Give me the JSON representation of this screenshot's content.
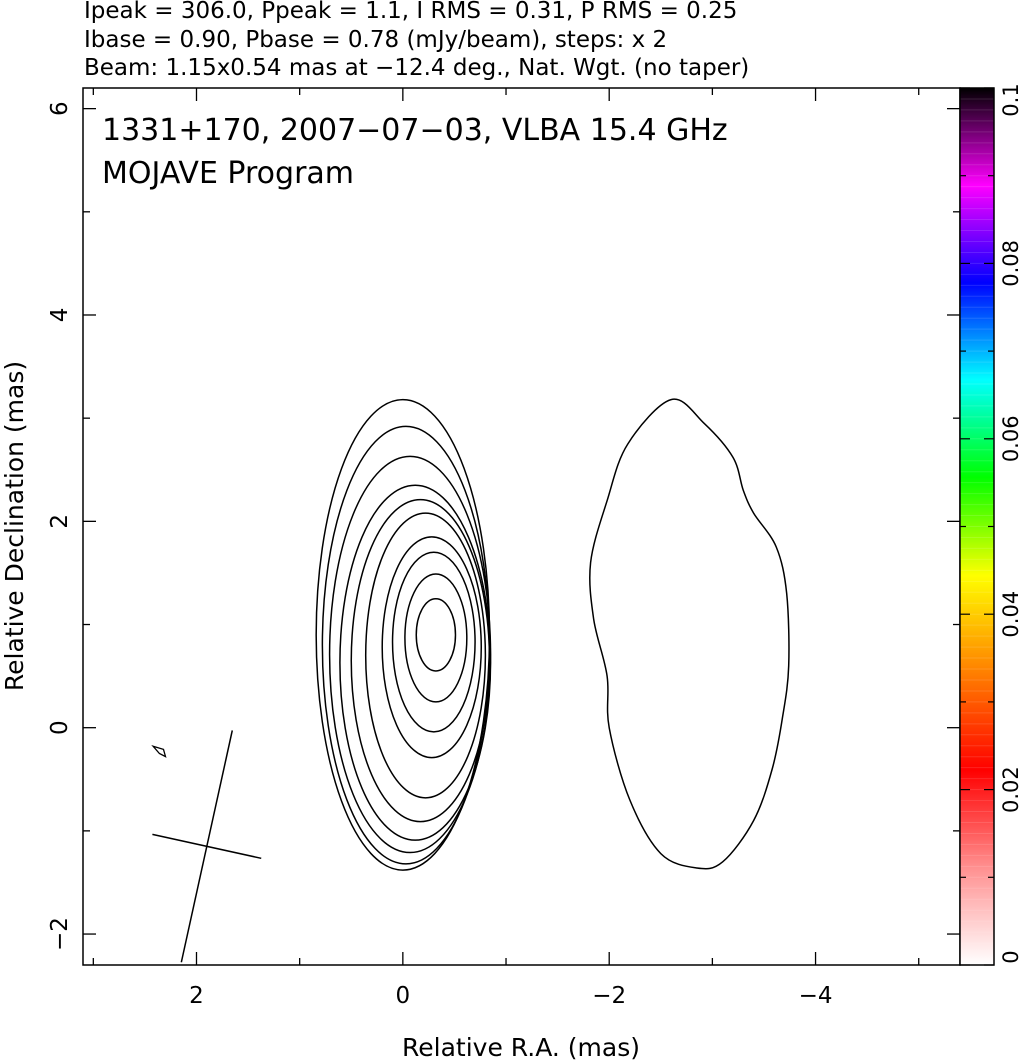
{
  "chart_data": {
    "type": "contour",
    "header_lines": [
      "Ipeak = 306.0, Ppeak = 1.1, I RMS = 0.31, P RMS = 0.25",
      "Ibase = 0.90, Pbase = 0.78 (mJy/beam), steps: x 2",
      "Beam: 1.15x0.54 mas at −12.4 deg., Nat. Wgt. (no taper)"
    ],
    "inner_title_lines": [
      "1331+170, 2007−07−03, VLBA 15.4 GHz",
      "MOJAVE Program"
    ],
    "xlabel": "Relative R.A. (mas)",
    "ylabel": "Relative Declination (mas)",
    "x_range": [
      3.1,
      -5.4
    ],
    "y_range": [
      -2.3,
      6.2
    ],
    "x_ticks": [
      {
        "value": 2,
        "label": "2"
      },
      {
        "value": 0,
        "label": "0"
      },
      {
        "value": -2,
        "label": "−2"
      },
      {
        "value": -4,
        "label": "−4"
      }
    ],
    "y_ticks": [
      {
        "value": -2,
        "label": "−2"
      },
      {
        "value": 0,
        "label": "0"
      },
      {
        "value": 2,
        "label": "2"
      },
      {
        "value": 4,
        "label": "4"
      },
      {
        "value": 6,
        "label": "6"
      }
    ],
    "colorbar": {
      "range": [
        0,
        0.1
      ],
      "tick_labels": [
        {
          "value": 0,
          "label": "0"
        },
        {
          "value": 0.02,
          "label": "0.02"
        },
        {
          "value": 0.04,
          "label": "0.04"
        },
        {
          "value": 0.06,
          "label": "0.06"
        },
        {
          "value": 0.08,
          "label": "0.08"
        },
        {
          "value": 0.1,
          "label": "0.1"
        }
      ],
      "colors_bottom_to_top": [
        "#ffffff",
        "#ff9090",
        "#ff0000",
        "#ff7f00",
        "#ffff00",
        "#00ff00",
        "#00ffff",
        "#0000ff",
        "#ff00ff",
        "#000000"
      ]
    },
    "beam": {
      "major_mas": 1.15,
      "minor_mas": 0.54,
      "pa_deg": -12.4,
      "center": [
        1.9,
        -1.15
      ]
    },
    "core_contours": [
      {
        "level": 1,
        "cx": -0.32,
        "cy": 0.9,
        "rx": 0.19,
        "ry": 0.35
      },
      {
        "level": 2,
        "cx": -0.32,
        "cy": 0.87,
        "rx": 0.3,
        "ry": 0.62
      },
      {
        "level": 3,
        "cx": -0.3,
        "cy": 0.83,
        "rx": 0.4,
        "ry": 0.87
      },
      {
        "level": 4,
        "cx": -0.28,
        "cy": 0.78,
        "rx": 0.48,
        "ry": 1.07
      },
      {
        "level": 5,
        "cx": -0.22,
        "cy": 0.7,
        "rx": 0.58,
        "ry": 1.38
      },
      {
        "level": 6,
        "cx": -0.17,
        "cy": 0.65,
        "rx": 0.67,
        "ry": 1.56
      },
      {
        "level": 7,
        "cx": -0.12,
        "cy": 0.63,
        "rx": 0.73,
        "ry": 1.72
      },
      {
        "level": 8,
        "cx": -0.07,
        "cy": 0.71,
        "rx": 0.78,
        "ry": 1.92
      },
      {
        "level": 9,
        "cx": -0.03,
        "cy": 0.8,
        "rx": 0.81,
        "ry": 2.12
      },
      {
        "level": 10,
        "cx": 0.0,
        "cy": 0.9,
        "rx": 0.84,
        "ry": 2.28
      }
    ],
    "jet_contour": [
      [
        -2.6,
        3.18
      ],
      [
        -2.92,
        2.95
      ],
      [
        -3.2,
        2.62
      ],
      [
        -3.3,
        2.3
      ],
      [
        -3.4,
        2.08
      ],
      [
        -3.62,
        1.75
      ],
      [
        -3.72,
        1.3
      ],
      [
        -3.74,
        0.6
      ],
      [
        -3.68,
        0.1
      ],
      [
        -3.58,
        -0.4
      ],
      [
        -3.4,
        -0.9
      ],
      [
        -3.1,
        -1.3
      ],
      [
        -2.85,
        -1.36
      ],
      [
        -2.5,
        -1.22
      ],
      [
        -2.2,
        -0.7
      ],
      [
        -2.0,
        0.0
      ],
      [
        -1.98,
        0.5
      ],
      [
        -1.85,
        1.05
      ],
      [
        -1.82,
        1.6
      ],
      [
        -1.98,
        2.2
      ],
      [
        -2.18,
        2.75
      ]
    ],
    "noise_contour": [
      [
        2.42,
        -0.18
      ],
      [
        2.36,
        -0.25
      ],
      [
        2.3,
        -0.28
      ],
      [
        2.32,
        -0.21
      ]
    ]
  }
}
